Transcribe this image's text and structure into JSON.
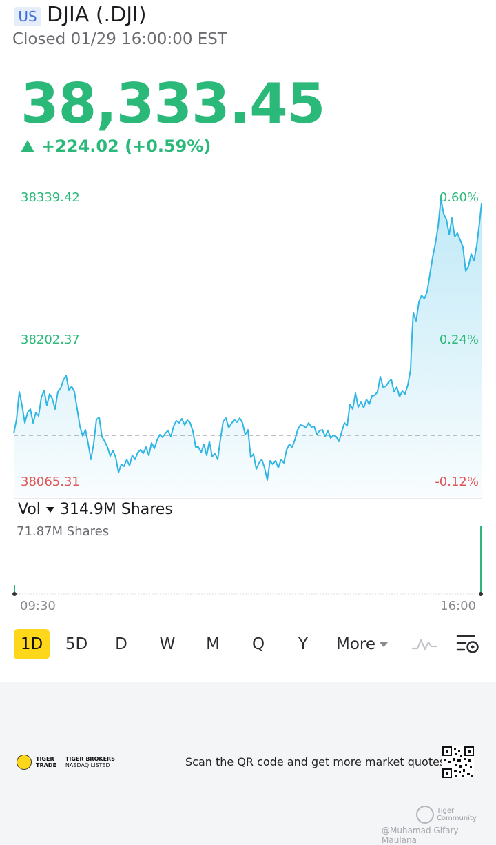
{
  "header": {
    "market_badge": "US",
    "symbol_title": "DJIA (.DJI)",
    "status": "Closed 01/29 16:00:00 EST"
  },
  "quote": {
    "price": "38,333.45",
    "change": "+224.02 (+0.59%)"
  },
  "chart": {
    "y_high": "38339.42",
    "y_mid": "38202.37",
    "y_low": "38065.31",
    "pct_high": "0.60%",
    "pct_mid": "0.24%",
    "pct_low": "-0.12%",
    "time_start": "09:30",
    "time_end": "16:00"
  },
  "volume": {
    "label": "Vol",
    "total": "314.9M Shares",
    "max": "71.87M Shares"
  },
  "periods": {
    "p1d": "1D",
    "p5d": "5D",
    "pd": "D",
    "pw": "W",
    "pm": "M",
    "pq": "Q",
    "py": "Y",
    "more": "More",
    "active": "1D"
  },
  "footer": {
    "logo_line1": "TIGER",
    "logo_line2": "TRADE",
    "logo_brokers": "TIGER BROKERS",
    "logo_listed": "NASDAQ LISTED",
    "qr_text": "Scan the QR code and get more market quotes",
    "community": "Tiger Community",
    "author": "@Muhamad Gifary Maulana"
  },
  "colors": {
    "up": "#2bb97a",
    "down": "#e05656",
    "line": "#2fb6e4",
    "active_period": "#ffd71a"
  },
  "icons": [
    "chart-indicator-icon",
    "chart-settings-icon"
  ]
}
